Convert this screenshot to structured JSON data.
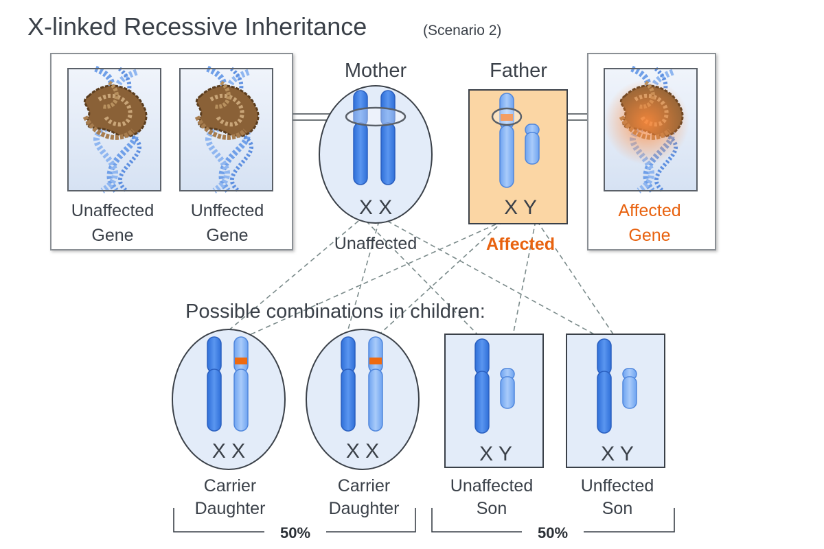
{
  "title": "X-linked Recessive Inheritance",
  "subtitle": "(Scenario 2)",
  "gene_panels": {
    "left": {
      "label_1_line1": "Unaffected",
      "label_1_line2": "Gene",
      "label_2_line1": "Unffected",
      "label_2_line2": "Gene"
    },
    "right": {
      "label_line1": "Affected",
      "label_line2": "Gene"
    }
  },
  "mother": {
    "title": "Mother",
    "chromosomes": "X X",
    "status": "Unaffected"
  },
  "father": {
    "title": "Father",
    "chromosomes": "X Y",
    "status": "Affected"
  },
  "children_heading": "Possible combinations in children:",
  "children": [
    {
      "chromosomes": "X X",
      "label_line1": "Carrier",
      "label_line2": "Daughter"
    },
    {
      "chromosomes": "X X",
      "label_line1": "Carrier",
      "label_line2": "Daughter"
    },
    {
      "chromosomes": "X Y",
      "label_line1": "Unaffected",
      "label_line2": "Son"
    },
    {
      "chromosomes": "X Y",
      "label_line1": "Unffected",
      "label_line2": "Son"
    }
  ],
  "groups": [
    {
      "percent": "50%"
    },
    {
      "percent": "50%"
    }
  ],
  "colors": {
    "text": "#3a4048",
    "affected": "#e8620f",
    "chrom_dark": "#3f7fe6",
    "chrom_light": "#8db8f7",
    "panel_fill": "#e3ecf9",
    "father_fill": "#fbd6a4",
    "dna_brown": "#8a6137",
    "dna_blue": "#6f9fe8"
  }
}
